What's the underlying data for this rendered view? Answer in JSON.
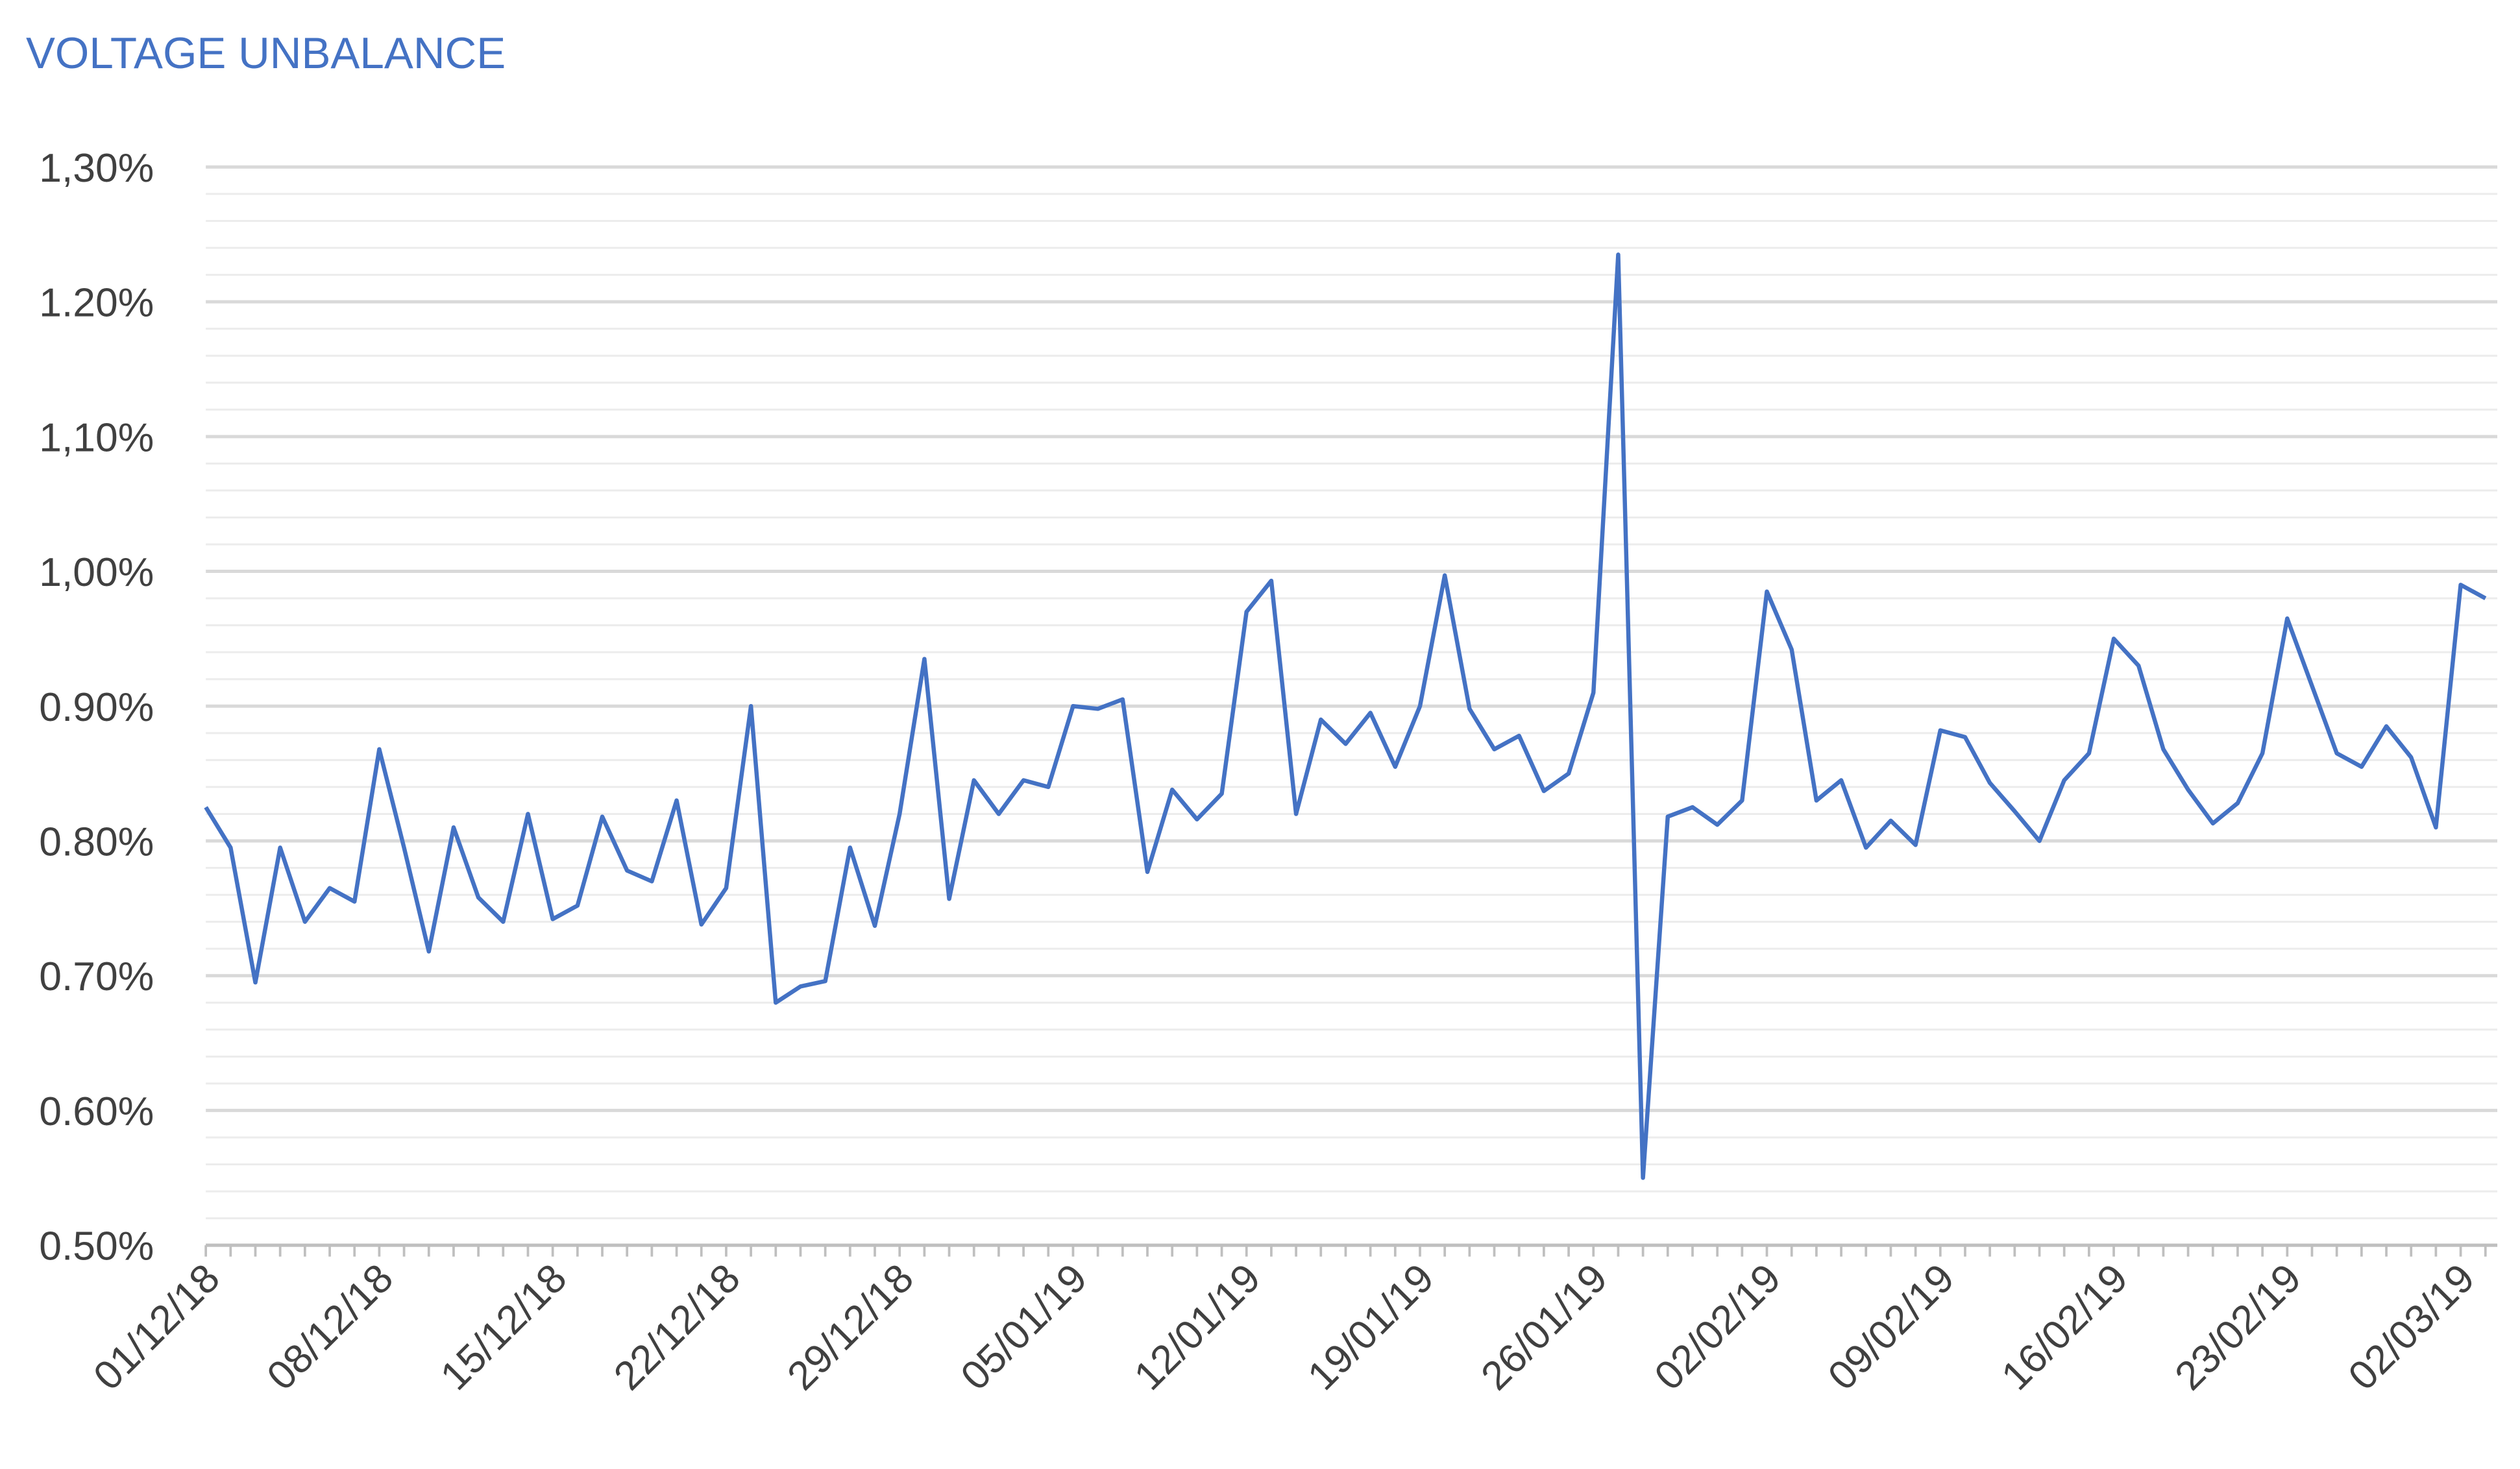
{
  "chart_data": {
    "type": "line",
    "title": "VOLTAGE UNBALANCE",
    "categories": [
      "01/12/18",
      null,
      null,
      null,
      null,
      null,
      null,
      "08/12/18",
      null,
      null,
      null,
      null,
      null,
      null,
      "15/12/18",
      null,
      null,
      null,
      null,
      null,
      null,
      "22/12/18",
      null,
      null,
      null,
      null,
      null,
      null,
      "29/12/18",
      null,
      null,
      null,
      null,
      null,
      null,
      "05/01/19",
      null,
      null,
      null,
      null,
      null,
      null,
      "12/01/19",
      null,
      null,
      null,
      null,
      null,
      null,
      "19/01/19",
      null,
      null,
      null,
      null,
      null,
      null,
      "26/01/19",
      null,
      null,
      null,
      null,
      null,
      null,
      "02/02/19",
      null,
      null,
      null,
      null,
      null,
      null,
      "09/02/19",
      null,
      null,
      null,
      null,
      null,
      null,
      "16/02/19",
      null,
      null,
      null,
      null,
      null,
      null,
      "23/02/19",
      null,
      null,
      null,
      null,
      null,
      null,
      "02/03/19",
      null
    ],
    "values": [
      0.825,
      0.795,
      0.695,
      0.795,
      0.74,
      0.765,
      0.755,
      0.868,
      0.795,
      0.718,
      0.81,
      0.758,
      0.74,
      0.82,
      0.742,
      0.752,
      0.818,
      0.778,
      0.77,
      0.83,
      0.738,
      0.765,
      0.9,
      0.68,
      0.692,
      0.696,
      0.795,
      0.737,
      0.82,
      0.935,
      0.757,
      0.845,
      0.82,
      0.845,
      0.84,
      0.9,
      0.898,
      0.905,
      0.777,
      0.838,
      0.816,
      0.835,
      0.97,
      0.993,
      0.82,
      0.89,
      0.872,
      0.895,
      0.855,
      0.9,
      0.997,
      0.898,
      0.868,
      0.878,
      0.837,
      0.85,
      0.91,
      1.235,
      0.55,
      0.818,
      0.825,
      0.812,
      0.83,
      0.985,
      0.942,
      0.83,
      0.845,
      0.795,
      0.815,
      0.797,
      0.882,
      0.877,
      0.843,
      0.822,
      0.8,
      0.845,
      0.865,
      0.95,
      0.93,
      0.868,
      0.838,
      0.813,
      0.828,
      0.865,
      0.965,
      0.915,
      0.865,
      0.855,
      0.885,
      0.862,
      0.81,
      0.99,
      0.98
    ],
    "color": "#4472c4",
    "ylim": [
      0.5,
      1.3
    ],
    "yticks": [
      {
        "value": 0.5,
        "label": "0.50%"
      },
      {
        "value": 0.6,
        "label": "0.60%"
      },
      {
        "value": 0.7,
        "label": "0.70%"
      },
      {
        "value": 0.8,
        "label": "0.80%"
      },
      {
        "value": 0.9,
        "label": "0.90%"
      },
      {
        "value": 1.0,
        "label": "1,00%"
      },
      {
        "value": 1.1,
        "label": "1,10%"
      },
      {
        "value": 1.2,
        "label": "1.20%"
      },
      {
        "value": 1.3,
        "label": "1,30%"
      }
    ],
    "minor_yticks": [
      0.52,
      0.54,
      0.56,
      0.58,
      0.62,
      0.64,
      0.66,
      0.68,
      0.72,
      0.74,
      0.76,
      0.78,
      0.82,
      0.84,
      0.86,
      0.88,
      0.92,
      0.94,
      0.96,
      0.98,
      1.02,
      1.04,
      1.06,
      1.08,
      1.12,
      1.14,
      1.16,
      1.18,
      1.22,
      1.24,
      1.26,
      1.28
    ],
    "grid": true
  }
}
